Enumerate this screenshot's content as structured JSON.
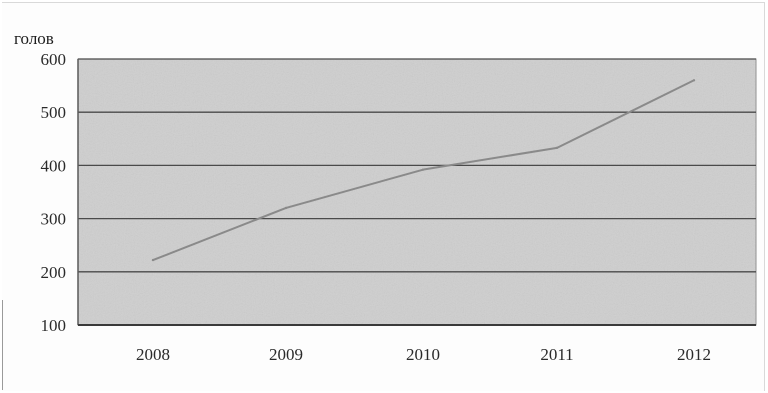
{
  "chart_data": {
    "type": "line",
    "ylabel": "голов",
    "categories": [
      "2008",
      "2009",
      "2010",
      "2011",
      "2012"
    ],
    "series": [
      {
        "values": [
          222,
          320,
          392,
          433,
          560
        ]
      }
    ],
    "yticks": [
      "100",
      "200",
      "300",
      "400",
      "500",
      "600"
    ],
    "ylim": [
      100,
      600
    ],
    "grid": true,
    "legend": "none"
  },
  "colors": {
    "plot_background": "#cfcfcf",
    "gridline": "#4a4a4a",
    "line": "#8a8a8a",
    "axis_text": "#2a2a2a"
  }
}
